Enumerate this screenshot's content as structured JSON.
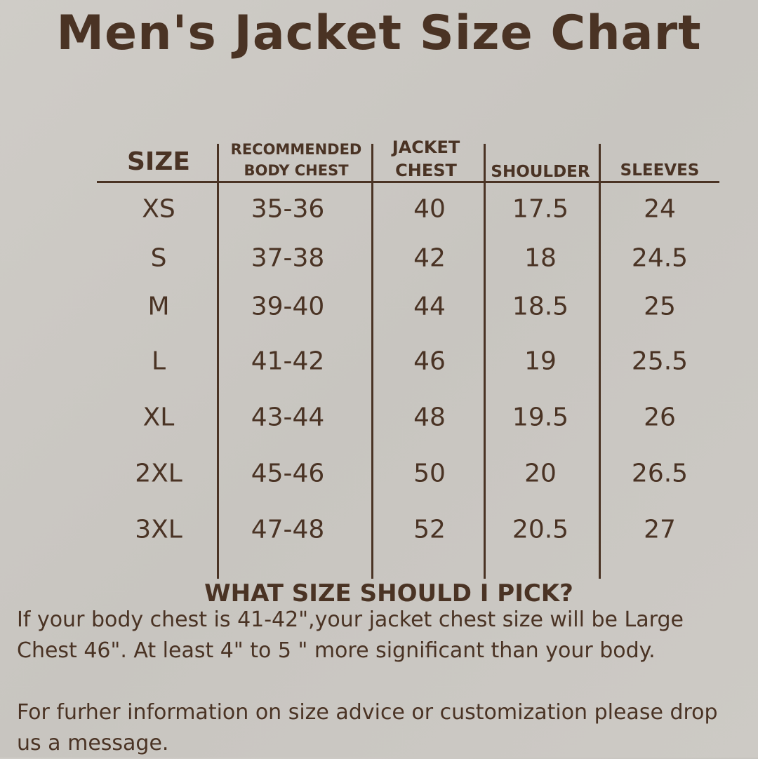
{
  "title": "Men's Jacket Size Chart",
  "table": {
    "headers": {
      "size": "SIZE",
      "body_chest_1": "RECOMMENDED",
      "body_chest_2": "BODY CHEST",
      "jacket_chest_1": "JACKET",
      "jacket_chest_2": "CHEST",
      "shoulder": "SHOULDER",
      "sleeves": "SLEEVES"
    },
    "rows": [
      {
        "size": "XS",
        "body_chest": "35-36",
        "jacket_chest": "40",
        "shoulder": "17.5",
        "sleeves": "24"
      },
      {
        "size": "S",
        "body_chest": "37-38",
        "jacket_chest": "42",
        "shoulder": "18",
        "sleeves": "24.5"
      },
      {
        "size": "M",
        "body_chest": "39-40",
        "jacket_chest": "44",
        "shoulder": "18.5",
        "sleeves": "25"
      },
      {
        "size": "L",
        "body_chest": "41-42",
        "jacket_chest": "46",
        "shoulder": "19",
        "sleeves": "25.5"
      },
      {
        "size": "XL",
        "body_chest": "43-44",
        "jacket_chest": "48",
        "shoulder": "19.5",
        "sleeves": "26"
      },
      {
        "size": "2XL",
        "body_chest": "45-46",
        "jacket_chest": "50",
        "shoulder": "20",
        "sleeves": "26.5"
      },
      {
        "size": "3XL",
        "body_chest": "47-48",
        "jacket_chest": "52",
        "shoulder": "20.5",
        "sleeves": "27"
      }
    ]
  },
  "advice": {
    "heading": "WHAT SIZE SHOULD I PICK?",
    "line1": "If your body chest is 41-42\",your jacket chest size will be Large",
    "line2": "Chest 46\". At least 4\" to 5 \" more significant than your body.",
    "line3": "For furher information on size advice or customization please drop",
    "line4": "us a message."
  },
  "colors": {
    "text": "#4a3324",
    "background": "#cbc8c3"
  }
}
